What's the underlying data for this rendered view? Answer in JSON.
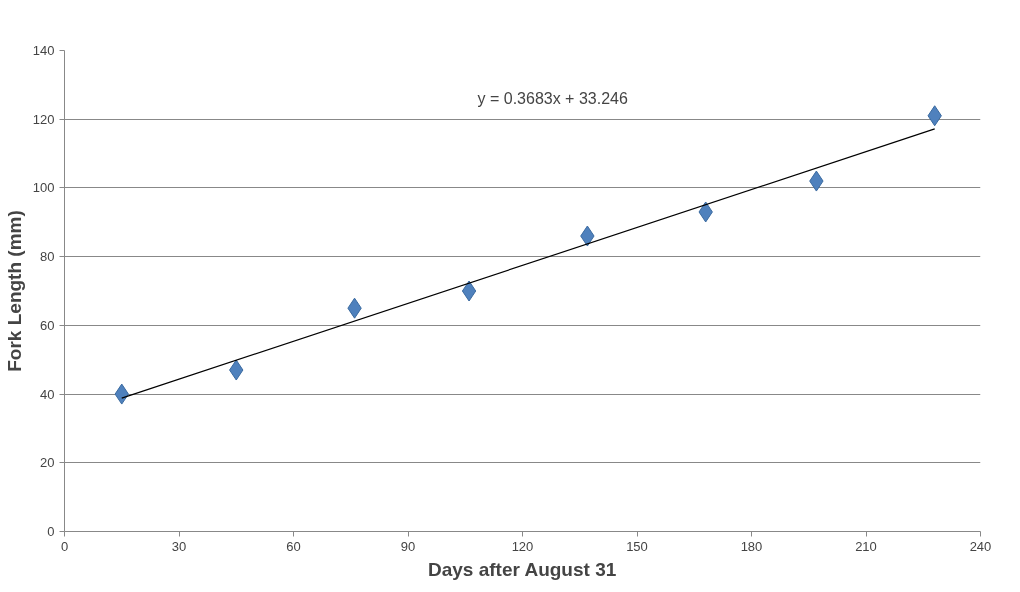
{
  "chart_data": {
    "type": "scatter",
    "xlabel": "Days after August 31",
    "ylabel": "Fork Length (mm)",
    "x": [
      15,
      45,
      76,
      106,
      137,
      168,
      197,
      228
    ],
    "series": [
      {
        "color": "#4f81bd",
        "marker": "diamond",
        "values": [
          40,
          47,
          65,
          70,
          86,
          93,
          102,
          121
        ]
      },
      {
        "type": "line",
        "color": "#000000",
        "line_style": "solid",
        "x": [
          15,
          228
        ],
        "values": [
          38.8,
          117.2
        ]
      }
    ],
    "annotations": [
      "y = 0.3683x + 33.246"
    ],
    "xlim": [
      0,
      240
    ],
    "xticks": [
      0,
      30,
      60,
      90,
      120,
      150,
      180,
      210,
      240
    ],
    "ylim": [
      0,
      140
    ],
    "yticks": [
      0,
      20,
      40,
      60,
      80,
      100,
      120,
      140
    ],
    "grid": "y"
  }
}
